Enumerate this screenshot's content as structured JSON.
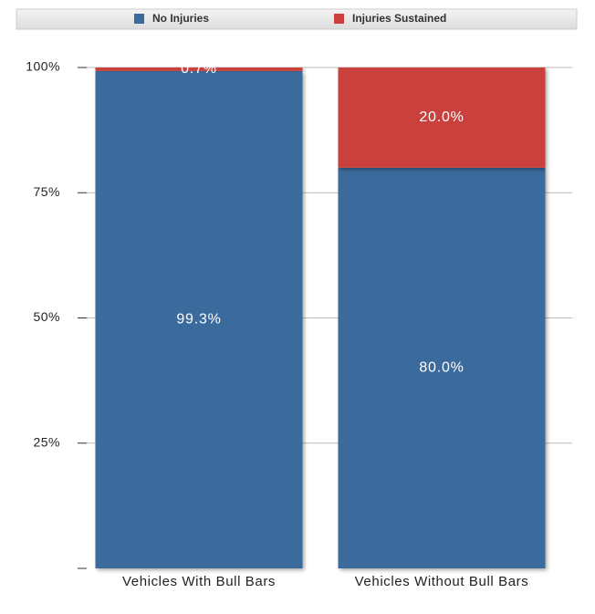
{
  "chart_data": {
    "type": "stacked-bar",
    "categories": [
      "Vehicles With Bull Bars",
      "Vehicles Without Bull Bars"
    ],
    "series": [
      {
        "name": "No Injuries",
        "color": "#3b6a9c",
        "values": [
          99.3,
          80.0
        ],
        "value_labels": [
          "99.3%",
          "80.0%"
        ]
      },
      {
        "name": "Injuries Sustained",
        "color": "#c9403c",
        "values": [
          0.7,
          20.0
        ],
        "value_labels": [
          "0.7%",
          "20.0%"
        ]
      }
    ],
    "ylim": [
      0,
      100
    ],
    "yticks": [
      {
        "value": 25,
        "label": "25%"
      },
      {
        "value": 50,
        "label": "50%"
      },
      {
        "value": 75,
        "label": "75%"
      },
      {
        "value": 100,
        "label": "100%"
      }
    ],
    "grid": true,
    "legend": "top"
  }
}
